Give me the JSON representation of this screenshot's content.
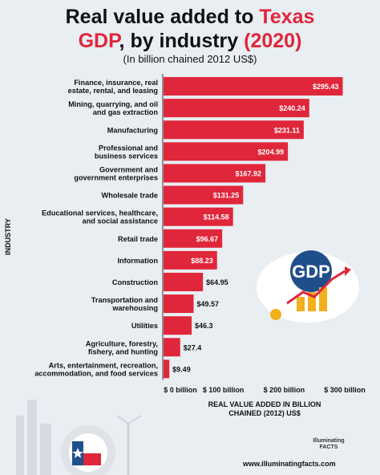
{
  "title_part1": "Real value added to ",
  "title_part2": "Texas",
  "title_line2a": "GDP",
  "title_line2b": ", by industry ",
  "title_line2c": "(2020)",
  "subtitle": "(In billion chained 2012 US$)",
  "brand": "Illuminating FACTS",
  "url": "www.illuminatingfacts.com",
  "gdp_art_text": "GDP",
  "colors": {
    "bar": "#e0263a",
    "label": "#ffffff",
    "accent": "#e0263a"
  },
  "chart_data": {
    "type": "bar",
    "orientation": "horizontal",
    "categories": [
      [
        "Finance, insurance, real",
        "estate, rental, and leasing"
      ],
      [
        "Mining, quarrying, and oil",
        "and gas extraction"
      ],
      [
        "Manufacturing"
      ],
      [
        "Professional and",
        "business services"
      ],
      [
        "Government and",
        "government enterprises"
      ],
      [
        "Wholesale trade"
      ],
      [
        "Educational services, healthcare,",
        "and social assistance"
      ],
      [
        "Retail trade"
      ],
      [
        "Information"
      ],
      [
        "Construction"
      ],
      [
        "Transportation and",
        "warehousing"
      ],
      [
        "Utilities"
      ],
      [
        "Agriculture, forestry,",
        "fishery, and hunting"
      ],
      [
        "Arts, entertainment, recreation,",
        "accommodation, and food services"
      ]
    ],
    "values": [
      295.43,
      240.24,
      231.11,
      204.99,
      167.92,
      131.25,
      114.58,
      96.67,
      88.23,
      64.95,
      49.57,
      46.3,
      27.4,
      9.49
    ],
    "value_labels": [
      "$295.43",
      "$240.24",
      "$231.11",
      "$204.99",
      "$167.92",
      "$131.25",
      "$114.58",
      "$96.67",
      "$88.23",
      "$64.95",
      "$49.57",
      "$46.3",
      "$27.4",
      "$9.49"
    ],
    "xlim": [
      0,
      300
    ],
    "xticks": [
      0,
      100,
      200,
      300
    ],
    "xtick_labels": [
      "$ 0 billion",
      "$ 100 billion",
      "$ 200 billion",
      "$ 300 billion"
    ],
    "xlabel": "REAL VALUE ADDED IN BILLION CHAINED (2012) US$",
    "ylabel": "INDUSTRY",
    "grid": false
  }
}
